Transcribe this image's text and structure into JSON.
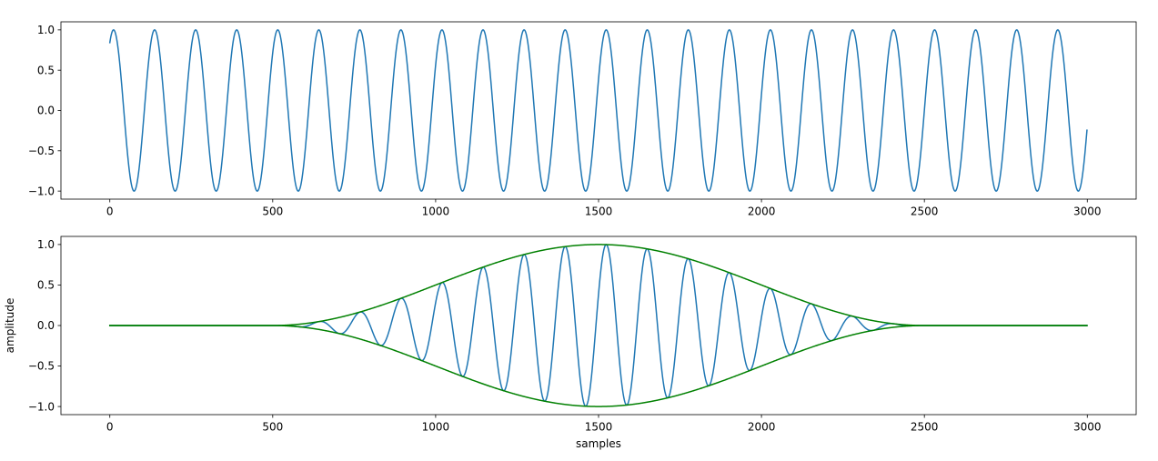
{
  "chart_data": [
    {
      "type": "line",
      "xlabel": "",
      "ylabel": "",
      "xlim": [
        -150,
        3150
      ],
      "ylim": [
        -1.1,
        1.1
      ],
      "xticks": [
        0,
        500,
        1000,
        1500,
        2000,
        2500,
        3000
      ],
      "yticks": [
        1.0,
        0.5,
        0.0,
        -0.5,
        -1.0
      ],
      "xtick_labels": [
        "0",
        "500",
        "1000",
        "1500",
        "2000",
        "2500",
        "3000"
      ],
      "ytick_labels": [
        "1.0",
        "0.5",
        "0.0",
        "−0.5",
        "−1.0"
      ],
      "grid": false,
      "legend": "none",
      "series": [
        {
          "signal": "sine",
          "color": "#1f77b4",
          "samples": 3000,
          "period": 126,
          "phase_rad": 1.0,
          "amplitude": 1.0,
          "x_range": [
            0,
            2999
          ]
        }
      ]
    },
    {
      "type": "line",
      "xlabel": "samples",
      "ylabel": "amplitude",
      "xlim": [
        -150,
        3150
      ],
      "ylim": [
        -1.1,
        1.1
      ],
      "xticks": [
        0,
        500,
        1000,
        1500,
        2000,
        2500,
        3000
      ],
      "yticks": [
        1.0,
        0.5,
        0.0,
        -0.5,
        -1.0
      ],
      "xtick_labels": [
        "0",
        "500",
        "1000",
        "1500",
        "2000",
        "2500",
        "3000"
      ],
      "ytick_labels": [
        "1.0",
        "0.5",
        "0.0",
        "−0.5",
        "−1.0"
      ],
      "grid": false,
      "legend": "none",
      "series": [
        {
          "signal": "windowed sine",
          "color": "#1f77b4",
          "samples": 3000,
          "period": 126,
          "phase_rad": 1.0,
          "window": "hann",
          "window_start": 500,
          "window_end": 2500,
          "x_range": [
            0,
            2999
          ]
        },
        {
          "signal": "envelope upper",
          "color": "#008000",
          "window": "hann",
          "window_start": 500,
          "window_end": 2500,
          "sign": 1,
          "x_range": [
            0,
            2999
          ]
        },
        {
          "signal": "envelope lower",
          "color": "#008000",
          "window": "hann",
          "window_start": 500,
          "window_end": 2500,
          "sign": -1,
          "x_range": [
            0,
            2999
          ]
        }
      ]
    }
  ]
}
